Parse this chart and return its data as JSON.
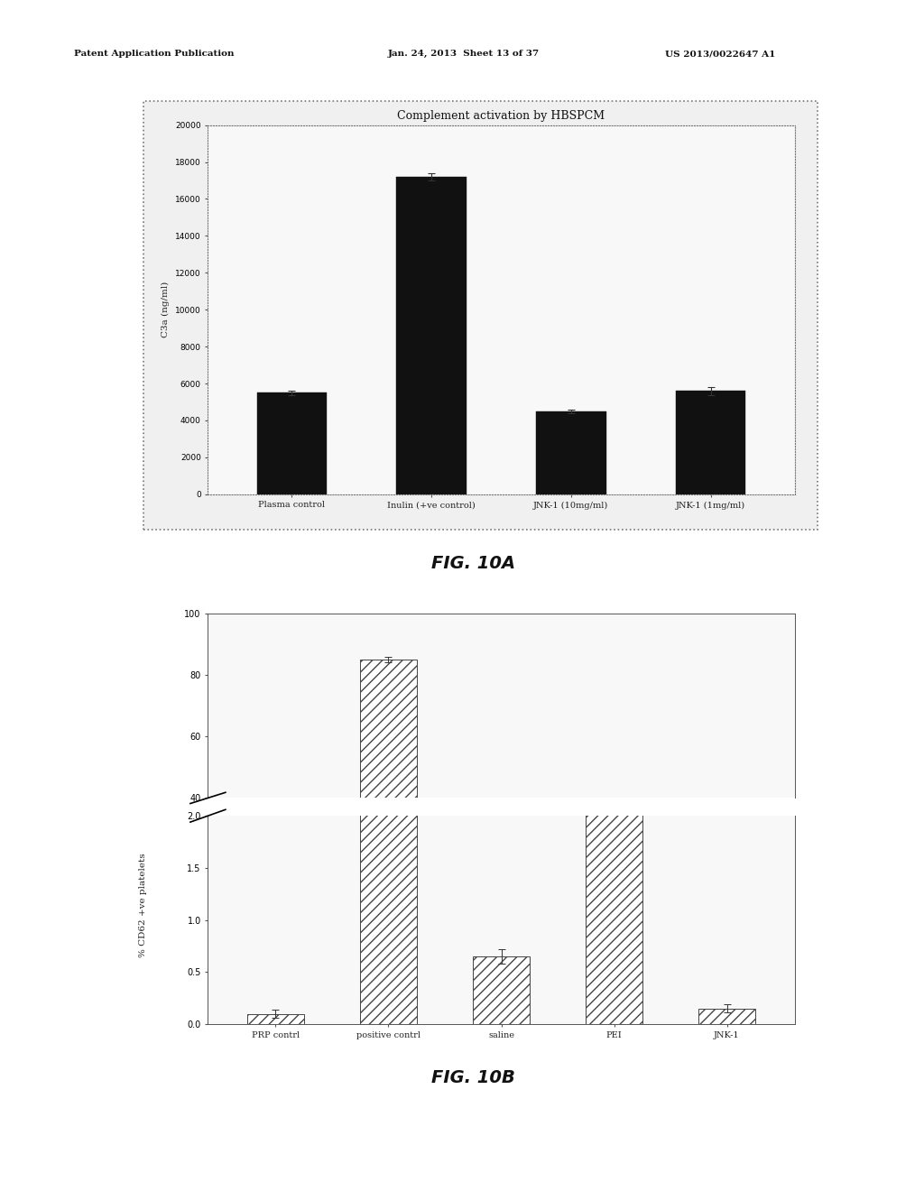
{
  "fig10a": {
    "title": "Complement activation by HBSPCM",
    "ylabel": "C3a (ng/ml)",
    "categories": [
      "Plasma control",
      "Inulin (+ve control)",
      "JNK-1 (10mg/ml)",
      "JNK-1 (1mg/ml)"
    ],
    "values": [
      5500,
      17200,
      4500,
      5600
    ],
    "errors": [
      120,
      180,
      100,
      230
    ],
    "bar_color": "#111111",
    "ylim": [
      0,
      20000
    ],
    "yticks": [
      0,
      2000,
      4000,
      6000,
      8000,
      10000,
      12000,
      14000,
      16000,
      18000,
      20000
    ],
    "bar_width": 0.5
  },
  "fig10b": {
    "ylabel": "% CD62 +ve platelets",
    "categories": [
      "PRP contrl",
      "positive contrl",
      "saline",
      "PEI",
      "JNK-1"
    ],
    "values": [
      0.1,
      85.0,
      0.65,
      33.0,
      0.15
    ],
    "errors": [
      0.04,
      0.8,
      0.07,
      2.0,
      0.04
    ],
    "hatch": "///",
    "bar_width": 0.5,
    "upper_ylim": [
      40,
      100
    ],
    "lower_ylim": [
      0.0,
      2.0
    ],
    "upper_yticks": [
      40,
      60,
      80,
      100
    ],
    "lower_yticks": [
      0.0,
      0.5,
      1.0,
      1.5,
      2.0
    ]
  },
  "bg_color": "#ffffff",
  "page_bg": "#ffffff",
  "chart_bg": "#f8f8f8",
  "header_left": "Patent Application Publication",
  "header_mid": "Jan. 24, 2013  Sheet 13 of 37",
  "header_right": "US 2013/0022647 A1",
  "fig10a_label": "FIG. 10A",
  "fig10b_label": "FIG. 10B"
}
